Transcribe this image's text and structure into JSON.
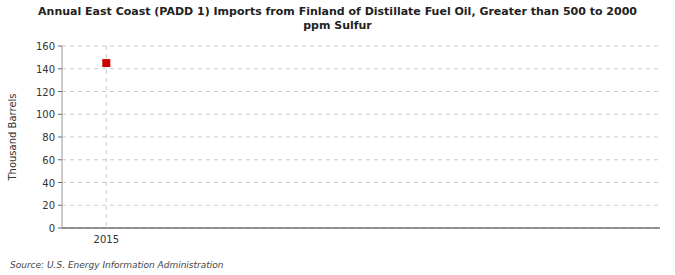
{
  "chart_data": {
    "type": "scatter",
    "title": "Annual East Coast (PADD 1) Imports from Finland of Distillate Fuel Oil, Greater than 500 to 2000\nppm Sulfur",
    "x": [
      2015
    ],
    "values": [
      145
    ],
    "color": "#cc0000",
    "marker": "square",
    "ylabel": "Thousand Barrels",
    "xlim": [
      2014.6,
      2020.0
    ],
    "ylim": [
      0,
      160
    ],
    "xticks": [
      2015
    ],
    "yticks": [
      0,
      20,
      40,
      60,
      80,
      100,
      120,
      140,
      160
    ],
    "grid": true,
    "source": "Source: U.S. Energy Information Administration"
  }
}
